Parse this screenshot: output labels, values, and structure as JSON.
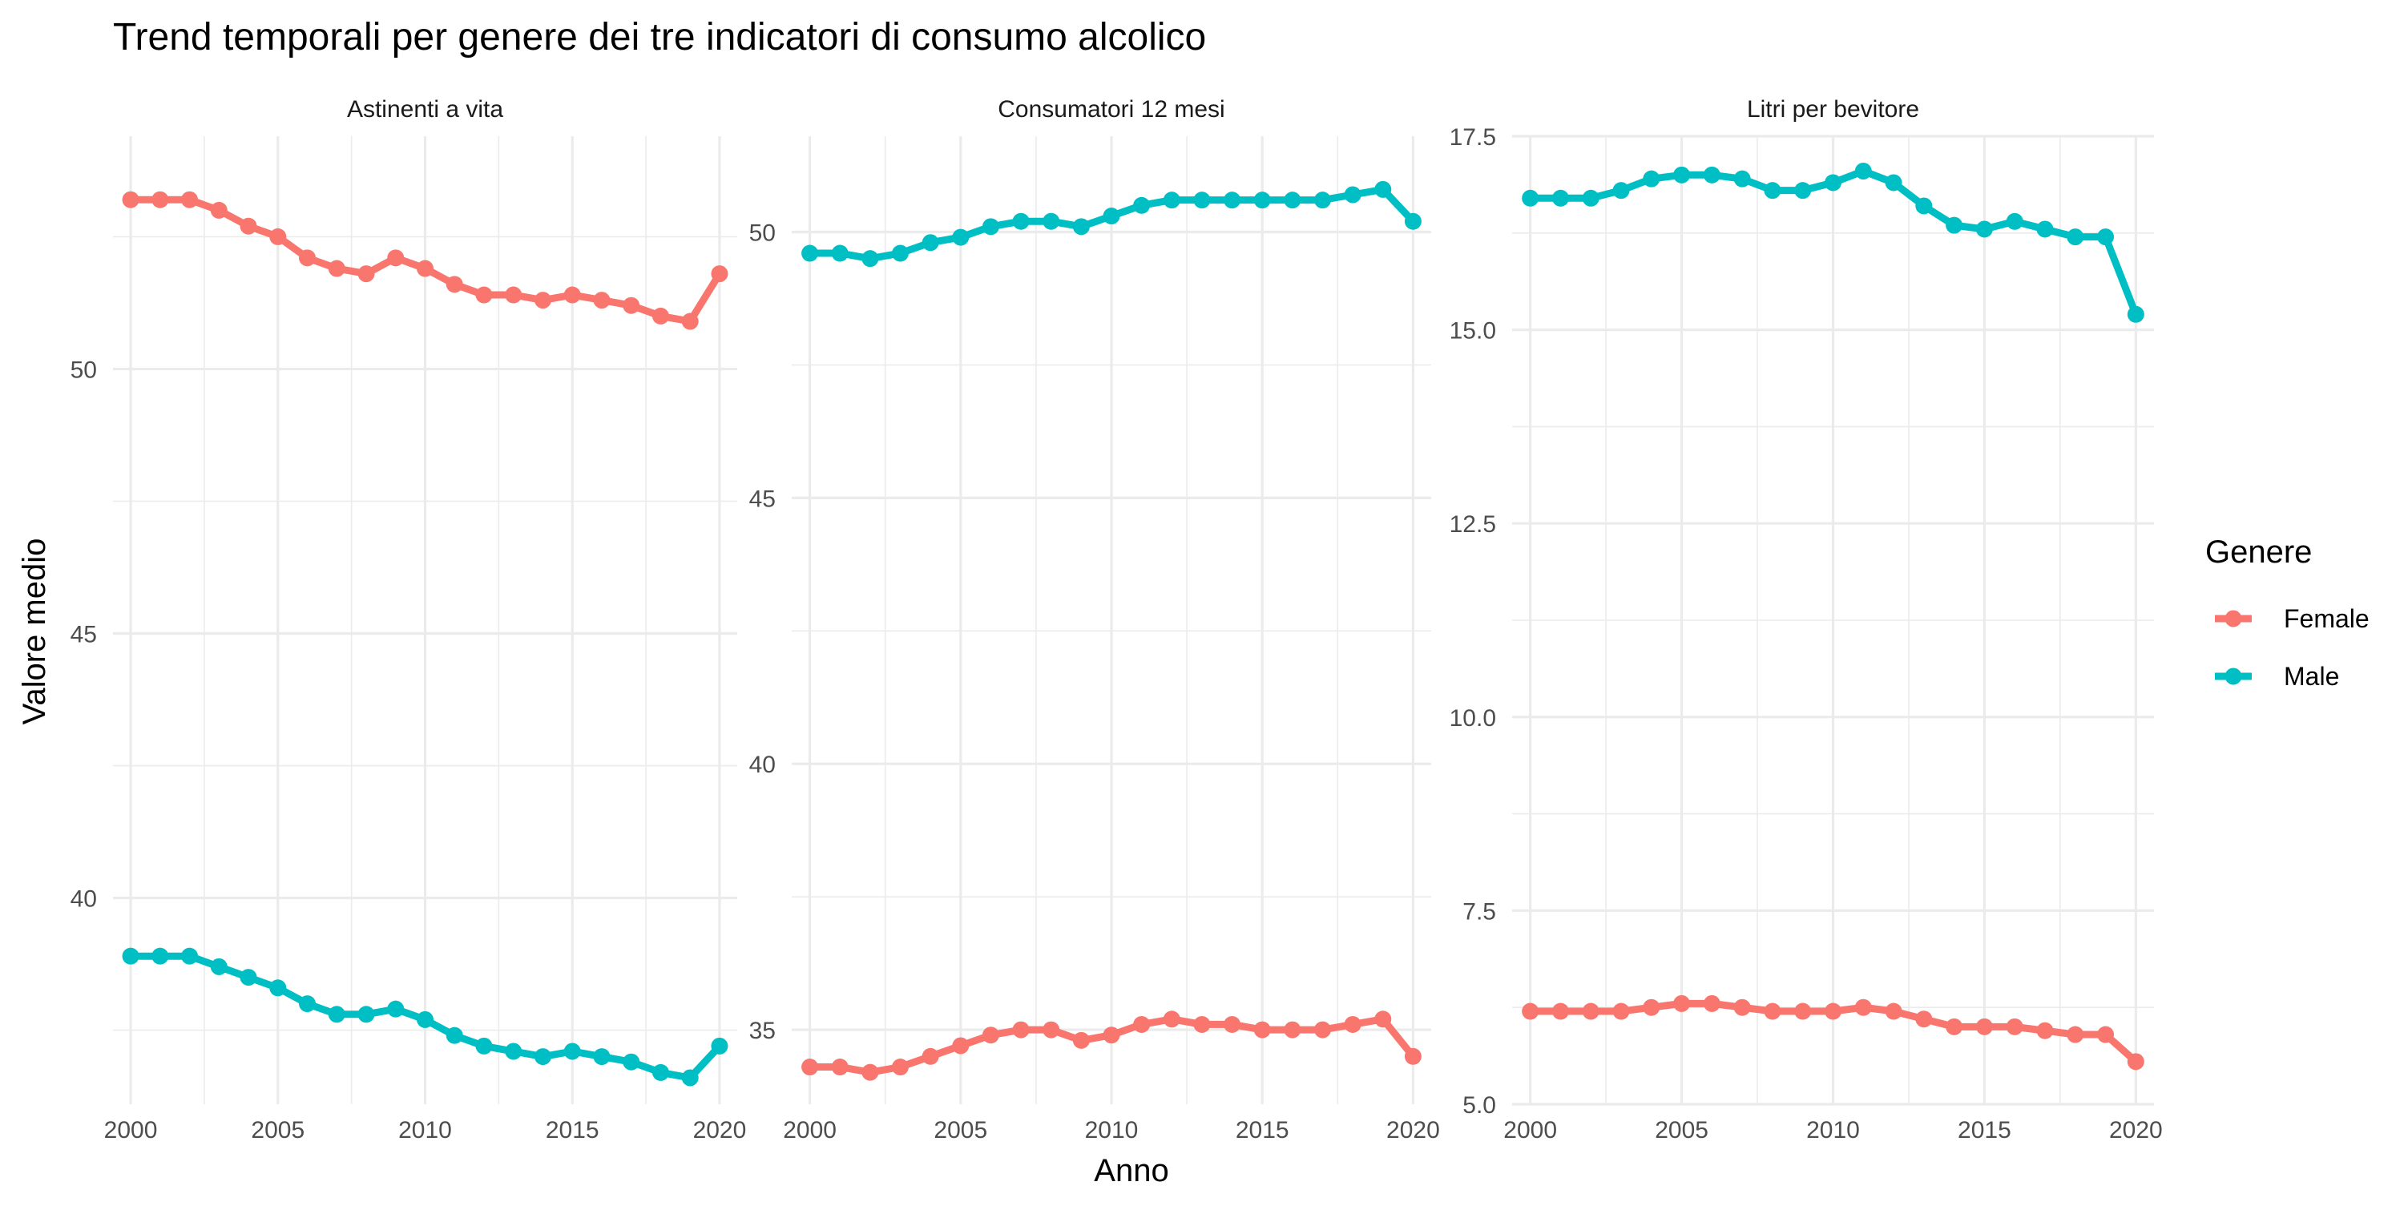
{
  "title": "Trend temporali per genere dei tre indicatori di consumo alcolico",
  "xlabel": "Anno",
  "ylabel": "Valore medio",
  "legend": {
    "title": "Genere",
    "items": [
      {
        "label": "Female",
        "color": "#F8766D"
      },
      {
        "label": "Male",
        "color": "#00BFC4"
      }
    ]
  },
  "chart_data": [
    {
      "type": "line",
      "facet_label": "Astinenti a vita",
      "x": [
        2000,
        2001,
        2002,
        2003,
        2004,
        2005,
        2006,
        2007,
        2008,
        2009,
        2010,
        2011,
        2012,
        2013,
        2014,
        2015,
        2016,
        2017,
        2018,
        2019,
        2020
      ],
      "series": [
        {
          "name": "Female",
          "color": "#F8766D",
          "values": [
            53.2,
            53.2,
            53.2,
            53.0,
            52.7,
            52.5,
            52.1,
            51.9,
            51.8,
            52.1,
            51.9,
            51.6,
            51.4,
            51.4,
            51.3,
            51.4,
            51.3,
            51.2,
            51.0,
            50.9,
            51.8
          ]
        },
        {
          "name": "Male",
          "color": "#00BFC4",
          "values": [
            38.9,
            38.9,
            38.9,
            38.7,
            38.5,
            38.3,
            38.0,
            37.8,
            37.8,
            37.9,
            37.7,
            37.4,
            37.2,
            37.1,
            37.0,
            37.1,
            37.0,
            36.9,
            36.7,
            36.6,
            37.2
          ]
        }
      ],
      "xlim": [
        1999.4,
        2020.6
      ],
      "ylim": [
        36.1,
        54.4
      ],
      "y_ticks": [
        40,
        45,
        50
      ],
      "x_ticks": [
        2000,
        2005,
        2010,
        2015,
        2020
      ]
    },
    {
      "type": "line",
      "facet_label": "Consumatori 12 mesi",
      "x": [
        2000,
        2001,
        2002,
        2003,
        2004,
        2005,
        2006,
        2007,
        2008,
        2009,
        2010,
        2011,
        2012,
        2013,
        2014,
        2015,
        2016,
        2017,
        2018,
        2019,
        2020
      ],
      "series": [
        {
          "name": "Female",
          "color": "#F8766D",
          "values": [
            34.3,
            34.3,
            34.2,
            34.3,
            34.5,
            34.7,
            34.9,
            35.0,
            35.0,
            34.8,
            34.9,
            35.1,
            35.2,
            35.1,
            35.1,
            35.0,
            35.0,
            35.0,
            35.1,
            35.2,
            34.5
          ]
        },
        {
          "name": "Male",
          "color": "#00BFC4",
          "values": [
            49.6,
            49.6,
            49.5,
            49.6,
            49.8,
            49.9,
            50.1,
            50.2,
            50.2,
            50.1,
            50.3,
            50.5,
            50.6,
            50.6,
            50.6,
            50.6,
            50.6,
            50.6,
            50.7,
            50.8,
            50.2
          ]
        }
      ],
      "xlim": [
        1999.4,
        2020.6
      ],
      "ylim": [
        33.6,
        51.8
      ],
      "y_ticks": [
        35,
        40,
        45,
        50
      ],
      "x_ticks": [
        2000,
        2005,
        2010,
        2015,
        2020
      ]
    },
    {
      "type": "line",
      "facet_label": "Litri per bevitore",
      "x": [
        2000,
        2001,
        2002,
        2003,
        2004,
        2005,
        2006,
        2007,
        2008,
        2009,
        2010,
        2011,
        2012,
        2013,
        2014,
        2015,
        2016,
        2017,
        2018,
        2019,
        2020
      ],
      "series": [
        {
          "name": "Female",
          "color": "#F8766D",
          "values": [
            6.2,
            6.2,
            6.2,
            6.2,
            6.25,
            6.3,
            6.3,
            6.25,
            6.2,
            6.2,
            6.2,
            6.25,
            6.2,
            6.1,
            6.0,
            6.0,
            6.0,
            5.95,
            5.9,
            5.9,
            5.55
          ]
        },
        {
          "name": "Male",
          "color": "#00BFC4",
          "values": [
            16.7,
            16.7,
            16.7,
            16.8,
            16.95,
            17.0,
            17.0,
            16.95,
            16.8,
            16.8,
            16.9,
            17.05,
            16.9,
            16.6,
            16.35,
            16.3,
            16.4,
            16.3,
            16.2,
            16.2,
            15.2
          ]
        }
      ],
      "xlim": [
        1999.4,
        2020.6
      ],
      "ylim": [
        5.0,
        17.5
      ],
      "y_ticks": [
        5.0,
        7.5,
        10.0,
        12.5,
        15.0,
        17.5
      ],
      "x_ticks": [
        2000,
        2005,
        2010,
        2015,
        2020
      ]
    }
  ]
}
